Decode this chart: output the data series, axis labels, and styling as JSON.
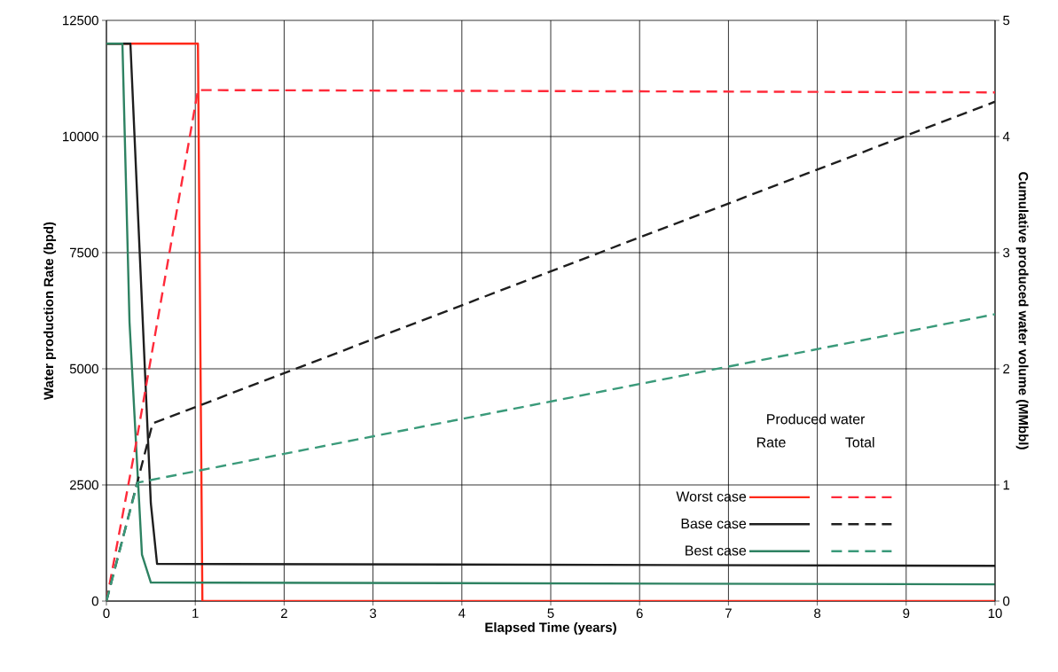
{
  "chart_data": {
    "type": "line",
    "xlabel": "Elapsed Time (years)",
    "ylabel": "Water production Rate (bpd)",
    "y2label": "Cumulative produced water volume (MMbbl)",
    "legend_title": "Produced water",
    "annotations": [
      "Rate",
      "Total"
    ],
    "xlim": [
      0,
      10
    ],
    "xticks": [
      0,
      1,
      2,
      3,
      4,
      5,
      6,
      7,
      8,
      9,
      10
    ],
    "ylim": [
      0,
      12500
    ],
    "yticks": [
      0,
      2500,
      5000,
      7500,
      10000,
      12500
    ],
    "y2lim": [
      0,
      5
    ],
    "y2ticks": [
      0,
      1,
      2,
      3,
      4,
      5
    ],
    "grid": true,
    "legend": "bottom right",
    "marker": "none",
    "series": [
      {
        "name": "Worst case",
        "color": "#ff2a1a",
        "line_style": "solid",
        "x": [
          0,
          1.03,
          1.08,
          10
        ],
        "values": [
          12000,
          12000,
          0,
          0
        ]
      },
      {
        "name": "Base case",
        "color": "#1e1e1e",
        "line_style": "solid",
        "x": [
          0,
          0.27,
          0.5,
          0.57,
          10
        ],
        "values": [
          12000,
          12000,
          2100,
          800,
          760
        ]
      },
      {
        "name": "Best case",
        "color": "#2e8262",
        "line_style": "solid",
        "x": [
          0,
          0.18,
          0.26,
          0.4,
          0.5,
          10
        ],
        "values": [
          12000,
          12000,
          6000,
          1000,
          400,
          360
        ]
      },
      {
        "color": "#ff2a3a",
        "line_style": "dashed",
        "axis": "y2",
        "x": [
          0,
          0.32,
          1.03,
          10
        ],
        "values": [
          0,
          1.3,
          4.4,
          4.38
        ]
      },
      {
        "color": "#1e1e1e",
        "line_style": "dashed",
        "axis": "y2",
        "x": [
          0,
          0.52,
          10
        ],
        "values": [
          0,
          1.53,
          4.3
        ]
      },
      {
        "color": "#3a9a7a",
        "line_style": "dashed",
        "axis": "y2",
        "x": [
          0,
          0.35,
          10
        ],
        "values": [
          0,
          1.02,
          2.47
        ]
      }
    ]
  }
}
